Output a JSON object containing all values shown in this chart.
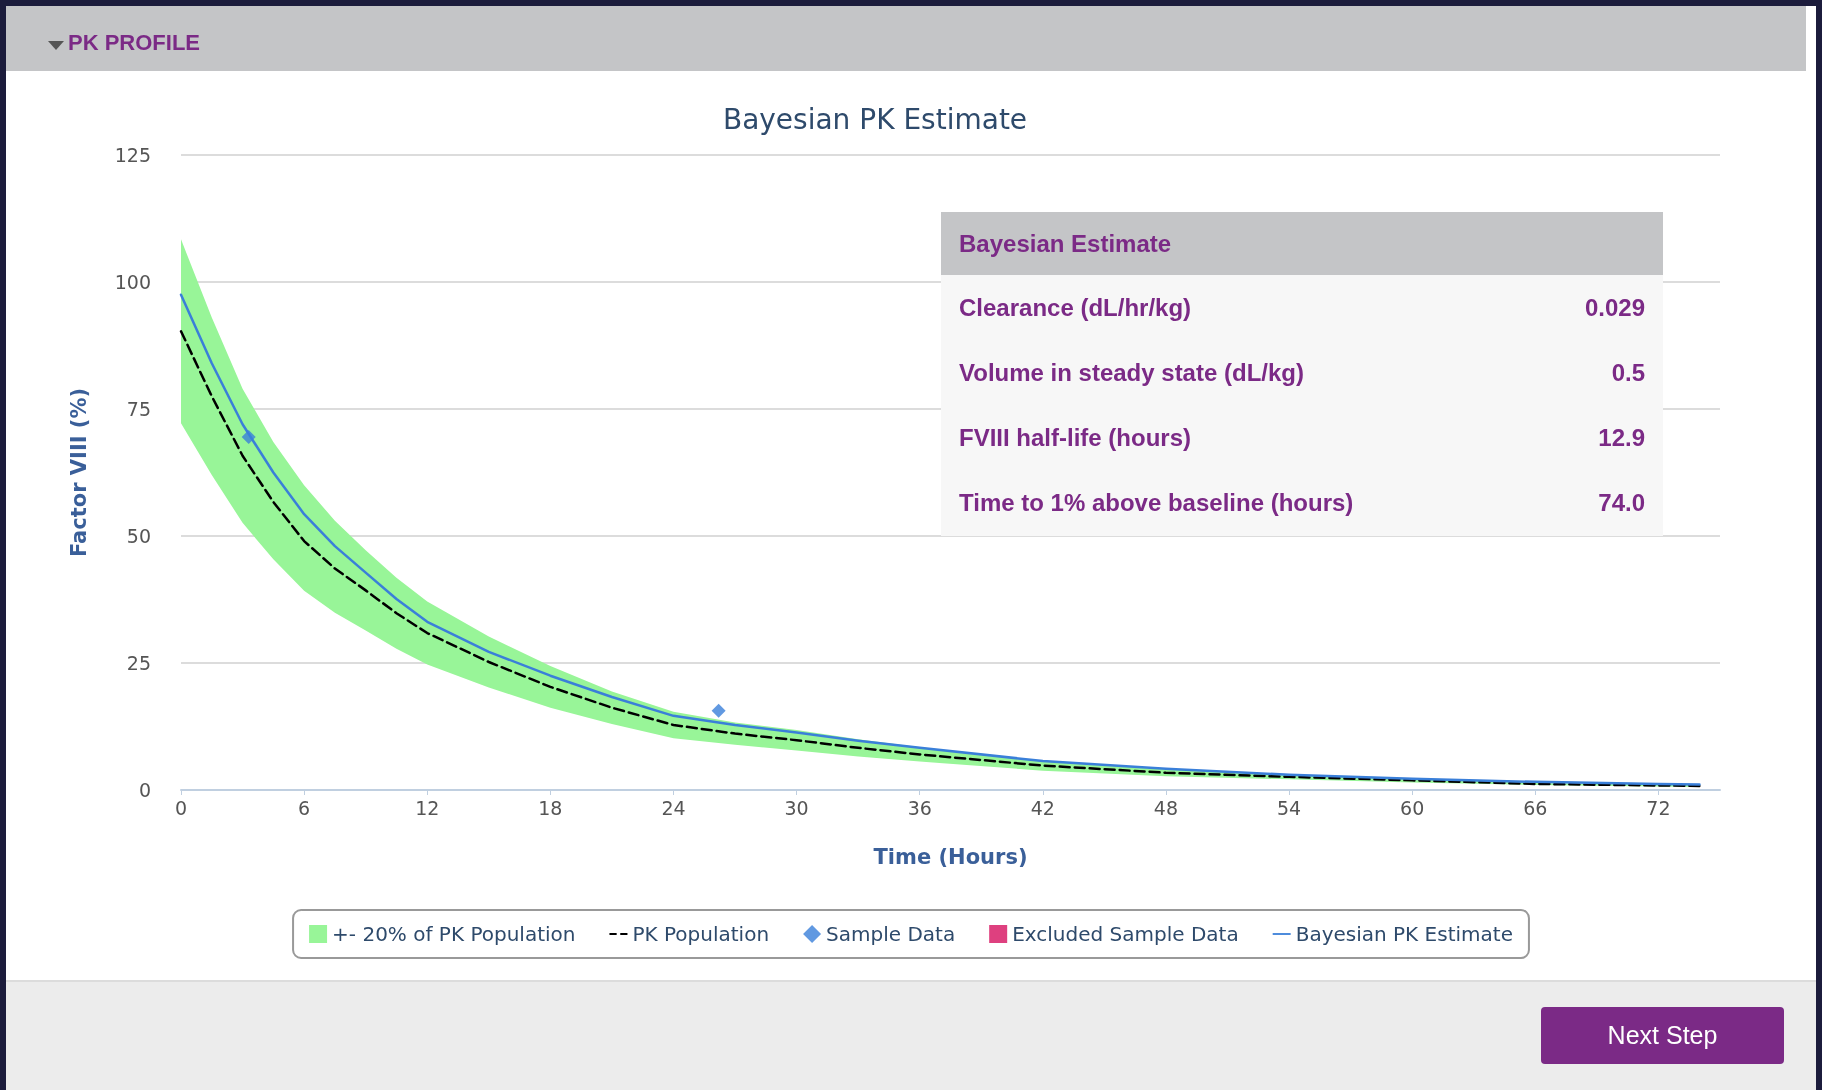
{
  "chart_data": {
    "type": "line",
    "title": "Bayesian PK Estimate",
    "xlabel": "Time (Hours)",
    "ylabel": "Factor VIII (%)",
    "xlim": [
      0,
      75
    ],
    "xticks": [
      0,
      6,
      12,
      18,
      24,
      30,
      36,
      42,
      48,
      54,
      60,
      66,
      72
    ],
    "ylim": [
      0,
      125
    ],
    "yticks": [
      0,
      25,
      50,
      75,
      100,
      125
    ],
    "grid": "y",
    "legend": "bottom",
    "annotations": [
      "PK PROFILE",
      "Bayesian Estimate",
      "Clearance (dL/hr/kg)",
      "0.029",
      "Volume in steady state (dL/kg)",
      "0.5",
      "FVIII half-life (hours)",
      "12.9",
      "Time to 1% above baseline (hours)",
      "74.0",
      "Next Step"
    ],
    "series": [
      {
        "name": "+- 20% of PK Population",
        "type": "area",
        "color": "#98f598"
      },
      {
        "name": "PK Population",
        "type": "line",
        "color": "#000000",
        "line_style": "dashed",
        "marker": "none",
        "x": [
          0,
          1.5,
          3,
          4.5,
          6,
          7.5,
          9,
          10.5,
          12,
          15,
          18,
          21,
          24,
          27,
          30,
          33,
          36,
          42,
          48,
          54,
          60,
          66,
          72,
          74
        ],
        "values": [
          90.3,
          77.5,
          65.8,
          56.7,
          49,
          43.6,
          39.3,
          34.8,
          30.9,
          25.2,
          20.3,
          16.2,
          12.8,
          11.1,
          9.8,
          8.3,
          7.0,
          4.8,
          3.4,
          2.6,
          1.9,
          1.2,
          0.9,
          0.8
        ],
        "lower": [
          72.2,
          62,
          52.6,
          45.4,
          39.2,
          34.9,
          31.4,
          27.8,
          24.7,
          20.2,
          16.2,
          13,
          10.2,
          8.9,
          7.8,
          6.6,
          5.6,
          3.8,
          2.7,
          2.1,
          1.5,
          1.0,
          0.7,
          0.6
        ],
        "upper": [
          108.4,
          93,
          79,
          68.5,
          60,
          53,
          47.2,
          41.8,
          37.1,
          30.2,
          24.4,
          19.4,
          15.4,
          13.3,
          11.8,
          10,
          8.4,
          5.8,
          4.1,
          3.1,
          2.3,
          1.4,
          1.1,
          1.0
        ]
      },
      {
        "name": "Sample Data",
        "type": "scatter",
        "color": "#3a7fd9",
        "marker": "diamond",
        "x": [
          3.3,
          26.2
        ],
        "values": [
          69.5,
          15.6
        ]
      },
      {
        "name": "Excluded Sample Data",
        "type": "scatter",
        "color": "#d6105f",
        "marker": "square"
      },
      {
        "name": "Bayesian PK Estimate",
        "color": "#3a7fd9",
        "line_style": "solid",
        "marker": "none",
        "x": [
          0,
          1.5,
          3,
          4.5,
          6,
          7.5,
          9,
          10.5,
          12,
          15,
          18,
          21,
          24,
          27,
          30,
          33,
          36,
          42,
          48,
          54,
          60,
          66,
          72,
          74
        ],
        "values": [
          97.5,
          84,
          72,
          62.5,
          54.3,
          48,
          42.8,
          37.6,
          33.1,
          27.2,
          22.5,
          18.3,
          14.6,
          12.8,
          11.3,
          9.7,
          8.3,
          5.7,
          4.2,
          3.0,
          2.2,
          1.6,
          1.2,
          1.1
        ]
      }
    ]
  }
}
